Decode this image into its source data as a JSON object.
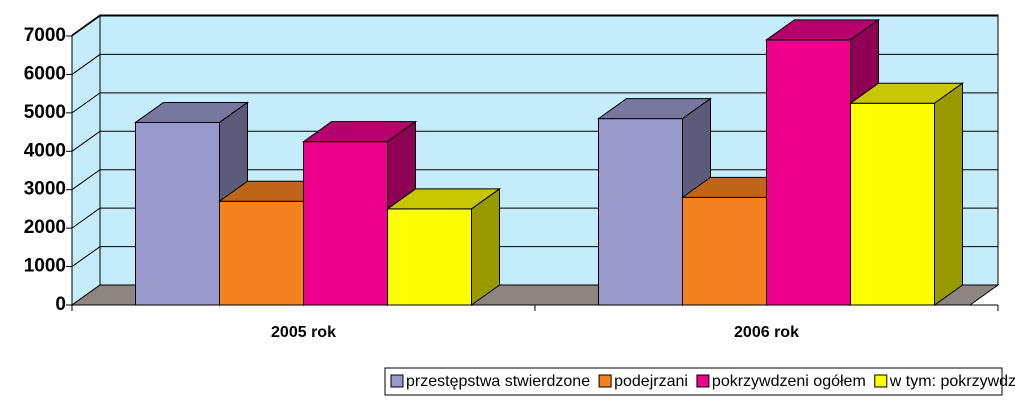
{
  "chart_data": {
    "type": "bar",
    "categories": [
      "2005 rok",
      "2006 rok"
    ],
    "series": [
      {
        "name": "przestępstwa stwierdzone",
        "color": "#9999cc",
        "values": [
          4750,
          4850
        ]
      },
      {
        "name": "podejrzani",
        "color": "#f58220",
        "values": [
          2700,
          2800
        ]
      },
      {
        "name": "pokrzywdzeni ogółem",
        "color": "#ec008c",
        "values": [
          4250,
          6900
        ]
      },
      {
        "name": "w tym: pokrzywdzeni małoletni",
        "color": "#ffff00",
        "values": [
          2500,
          5250
        ]
      }
    ],
    "ylim": [
      0,
      7000
    ],
    "yticks": [
      0,
      1000,
      2000,
      3000,
      4000,
      5000,
      6000,
      7000
    ],
    "grid": true,
    "legend": "bottom"
  }
}
